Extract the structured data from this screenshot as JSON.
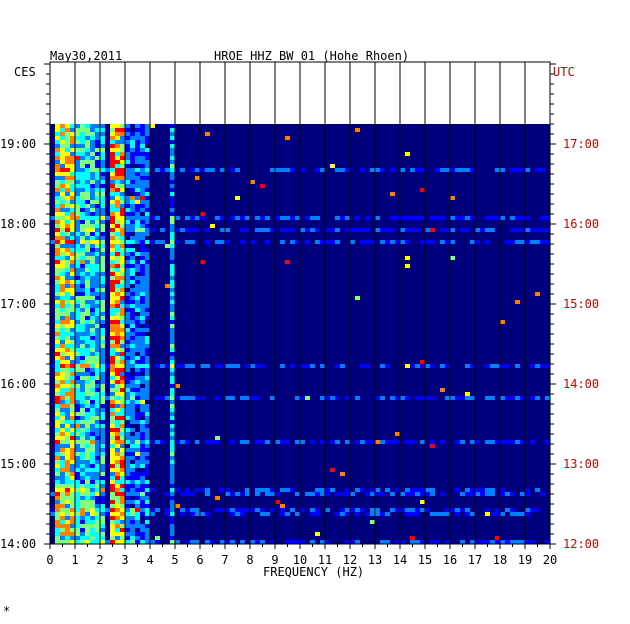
{
  "header": {
    "date": "May30,2011",
    "station": "HROE HHZ BW 01 (Hohe Rhoen)",
    "left_zone": "CES",
    "right_zone": "UTC"
  },
  "chart_data": {
    "type": "heatmap",
    "title": "HROE HHZ BW 01 (Hohe Rhoen)",
    "xlabel": "FREQUENCY (HZ)",
    "x_range": [
      0,
      20
    ],
    "x_ticks": [
      "0",
      "1",
      "2",
      "3",
      "4",
      "5",
      "6",
      "7",
      "8",
      "9",
      "10",
      "11",
      "12",
      "13",
      "14",
      "15",
      "16",
      "17",
      "18",
      "19",
      "20"
    ],
    "y_left_ticks": [
      "14:00",
      "15:00",
      "16:00",
      "17:00",
      "18:00",
      "19:00"
    ],
    "y_right_ticks": [
      "12:00",
      "13:00",
      "14:00",
      "15:00",
      "16:00",
      "17:00"
    ],
    "y_range_utc": [
      "12:00",
      "17:15"
    ],
    "bands": [
      {
        "from_hz": 0.2,
        "to_hz": 1.0,
        "level": 0.65
      },
      {
        "from_hz": 1.0,
        "to_hz": 2.2,
        "level": 0.45
      },
      {
        "from_hz": 2.5,
        "to_hz": 3.0,
        "level": 0.75
      },
      {
        "from_hz": 3.0,
        "to_hz": 4.0,
        "level": 0.3
      },
      {
        "from_hz": 4.8,
        "to_hz": 4.9,
        "level": 0.4
      }
    ],
    "background_level": 0.08,
    "color_scale": [
      "#00007f",
      "#0000ff",
      "#0080ff",
      "#00ffff",
      "#80ff80",
      "#ffff00",
      "#ff8000",
      "#ff0000"
    ],
    "grid": true,
    "colors": {
      "left_axis": "#000000",
      "right_axis": "#cc0000"
    }
  },
  "footnote": "*"
}
